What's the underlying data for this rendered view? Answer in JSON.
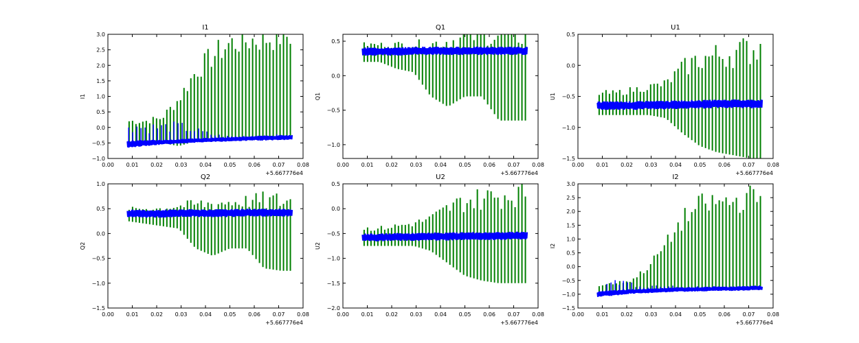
{
  "figure": {
    "colors": {
      "series_a": "#0000ff",
      "series_b": "#007f00",
      "axes": "#000000",
      "background": "#ffffff"
    }
  },
  "chart_data": [
    {
      "type": "line",
      "title": "I1",
      "ylabel": "I1",
      "xlabel": "",
      "x_offset_label": "+5.667776e4",
      "xlim": [
        0.0,
        0.08
      ],
      "ylim": [
        -1.0,
        3.0
      ],
      "xticks": [
        "0.00",
        "0.01",
        "0.02",
        "0.03",
        "0.04",
        "0.05",
        "0.06",
        "0.07",
        "0.08"
      ],
      "yticks": [
        "−1.0",
        "−0.5",
        "0.0",
        "0.5",
        "1.0",
        "1.5",
        "2.0",
        "2.5",
        "3.0"
      ],
      "x": [
        0.008,
        0.015,
        0.022,
        0.029,
        0.036,
        0.043,
        0.05,
        0.057,
        0.064,
        0.071,
        0.0755
      ],
      "series": [
        {
          "name": "blue",
          "color": "#0000ff",
          "center": [
            -0.55,
            -0.5,
            -0.48,
            -0.45,
            -0.42,
            -0.4,
            -0.38,
            -0.36,
            -0.34,
            -0.33,
            -0.32
          ],
          "spread": [
            0.12,
            0.1,
            0.08,
            0.07,
            0.07,
            0.07,
            0.07,
            0.07,
            0.08,
            0.08,
            0.08
          ],
          "spikes": [
            0.4,
            0.3,
            0.3,
            0.3,
            0.2,
            0.1,
            0.05,
            0.05,
            0.05,
            0.05,
            0.05
          ]
        },
        {
          "name": "green",
          "color": "#007f00",
          "low": [
            -0.6,
            -0.55,
            -0.5,
            -0.6,
            -0.45,
            -0.45,
            -0.4,
            -0.4,
            -0.35,
            -0.35,
            -0.3
          ],
          "high": [
            0.2,
            0.2,
            0.3,
            0.9,
            1.8,
            2.3,
            2.7,
            2.8,
            2.85,
            2.95,
            2.95
          ]
        }
      ]
    },
    {
      "type": "line",
      "title": "Q1",
      "ylabel": "Q1",
      "xlabel": "",
      "x_offset_label": "+5.667776e4",
      "xlim": [
        0.0,
        0.08
      ],
      "ylim": [
        -1.2,
        0.6
      ],
      "xticks": [
        "0.00",
        "0.01",
        "0.02",
        "0.03",
        "0.04",
        "0.05",
        "0.06",
        "0.07",
        "0.08"
      ],
      "yticks": [
        "−1.0",
        "−0.5",
        "0.0",
        "0.5"
      ],
      "yticks_values": [
        -1.0,
        -0.5,
        0.0,
        0.5
      ],
      "x": [
        0.008,
        0.015,
        0.022,
        0.029,
        0.036,
        0.043,
        0.05,
        0.057,
        0.064,
        0.071,
        0.0755
      ],
      "series": [
        {
          "name": "blue",
          "color": "#0000ff",
          "center": [
            0.35,
            0.35,
            0.35,
            0.36,
            0.36,
            0.36,
            0.36,
            0.36,
            0.36,
            0.36,
            0.36
          ],
          "spread": [
            0.06,
            0.06,
            0.06,
            0.06,
            0.06,
            0.06,
            0.06,
            0.06,
            0.06,
            0.06,
            0.06
          ],
          "spikes": [
            0.0,
            0.0,
            0.0,
            0.0,
            0.0,
            0.0,
            0.0,
            0.0,
            0.0,
            0.0,
            0.0
          ]
        },
        {
          "name": "green",
          "color": "#007f00",
          "low": [
            0.2,
            0.2,
            0.1,
            0.05,
            -0.3,
            -0.45,
            -0.3,
            -0.3,
            -0.65,
            -0.65,
            -0.65
          ],
          "high": [
            0.45,
            0.45,
            0.45,
            0.45,
            0.45,
            0.5,
            0.55,
            0.58,
            0.58,
            0.58,
            0.58
          ]
        }
      ]
    },
    {
      "type": "line",
      "title": "U1",
      "ylabel": "U1",
      "xlabel": "",
      "x_offset_label": "+5.667776e4",
      "xlim": [
        0.0,
        0.08
      ],
      "ylim": [
        -1.5,
        0.5
      ],
      "xticks": [
        "0.00",
        "0.01",
        "0.02",
        "0.03",
        "0.04",
        "0.05",
        "0.06",
        "0.07",
        "0.08"
      ],
      "yticks": [
        "−1.5",
        "−1.0",
        "−0.5",
        "0.0",
        "0.5"
      ],
      "yticks_values": [
        -1.5,
        -1.0,
        -0.5,
        0.0,
        0.5
      ],
      "x": [
        0.008,
        0.015,
        0.022,
        0.029,
        0.036,
        0.043,
        0.05,
        0.057,
        0.064,
        0.071,
        0.0755
      ],
      "series": [
        {
          "name": "blue",
          "color": "#0000ff",
          "center": [
            -0.65,
            -0.65,
            -0.65,
            -0.64,
            -0.64,
            -0.63,
            -0.63,
            -0.62,
            -0.62,
            -0.62,
            -0.62
          ],
          "spread": [
            0.07,
            0.07,
            0.07,
            0.07,
            0.07,
            0.07,
            0.07,
            0.07,
            0.07,
            0.07,
            0.07
          ],
          "spikes": [
            0.0,
            0.0,
            0.0,
            0.0,
            0.0,
            0.0,
            0.0,
            0.0,
            0.0,
            0.0,
            0.0
          ]
        },
        {
          "name": "green",
          "color": "#007f00",
          "low": [
            -0.8,
            -0.8,
            -0.8,
            -0.8,
            -0.85,
            -1.1,
            -1.3,
            -1.4,
            -1.45,
            -1.5,
            -1.5
          ],
          "high": [
            -0.45,
            -0.45,
            -0.4,
            -0.35,
            -0.3,
            -0.05,
            0.1,
            0.15,
            0.2,
            0.25,
            0.3
          ]
        }
      ]
    },
    {
      "type": "line",
      "title": "Q2",
      "ylabel": "Q2",
      "xlabel": "",
      "x_offset_label": "+5.667776e4",
      "xlim": [
        0.0,
        0.08
      ],
      "ylim": [
        -1.5,
        1.0
      ],
      "xticks": [
        "0.00",
        "0.01",
        "0.02",
        "0.03",
        "0.04",
        "0.05",
        "0.06",
        "0.07",
        "0.08"
      ],
      "yticks": [
        "−1.5",
        "−1.0",
        "−0.5",
        "0.0",
        "0.5",
        "1.0"
      ],
      "yticks_values": [
        -1.5,
        -1.0,
        -0.5,
        0.0,
        0.5,
        1.0
      ],
      "x": [
        0.008,
        0.015,
        0.022,
        0.029,
        0.036,
        0.043,
        0.05,
        0.057,
        0.064,
        0.071,
        0.0755
      ],
      "series": [
        {
          "name": "blue",
          "color": "#0000ff",
          "center": [
            0.4,
            0.4,
            0.4,
            0.41,
            0.41,
            0.41,
            0.41,
            0.42,
            0.42,
            0.42,
            0.42
          ],
          "spread": [
            0.08,
            0.08,
            0.08,
            0.08,
            0.08,
            0.08,
            0.08,
            0.08,
            0.08,
            0.08,
            0.08
          ],
          "spikes": [
            0.0,
            0.0,
            0.0,
            0.0,
            0.0,
            0.0,
            0.0,
            0.0,
            0.0,
            0.0,
            0.0
          ]
        },
        {
          "name": "green",
          "color": "#007f00",
          "low": [
            0.25,
            0.2,
            0.15,
            0.1,
            -0.3,
            -0.45,
            -0.3,
            -0.3,
            -0.7,
            -0.75,
            -0.75
          ],
          "high": [
            0.5,
            0.5,
            0.5,
            0.55,
            0.58,
            0.6,
            0.63,
            0.65,
            0.65,
            0.65,
            0.65
          ]
        }
      ]
    },
    {
      "type": "line",
      "title": "U2",
      "ylabel": "U2",
      "xlabel": "",
      "x_offset_label": "+5.667776e4",
      "xlim": [
        0.0,
        0.08
      ],
      "ylim": [
        -2.0,
        0.5
      ],
      "xticks": [
        "0.00",
        "0.01",
        "0.02",
        "0.03",
        "0.04",
        "0.05",
        "0.06",
        "0.07",
        "0.08"
      ],
      "yticks": [
        "−2.0",
        "−1.5",
        "−1.0",
        "−0.5",
        "0.0",
        "0.5"
      ],
      "yticks_values": [
        -2.0,
        -1.5,
        -1.0,
        -0.5,
        0.0,
        0.5
      ],
      "x": [
        0.008,
        0.015,
        0.022,
        0.029,
        0.036,
        0.043,
        0.05,
        0.057,
        0.064,
        0.071,
        0.0755
      ],
      "series": [
        {
          "name": "blue",
          "color": "#0000ff",
          "center": [
            -0.58,
            -0.58,
            -0.57,
            -0.57,
            -0.56,
            -0.56,
            -0.55,
            -0.55,
            -0.55,
            -0.54,
            -0.54
          ],
          "spread": [
            0.08,
            0.08,
            0.08,
            0.08,
            0.08,
            0.08,
            0.08,
            0.08,
            0.08,
            0.08,
            0.08
          ],
          "spikes": [
            0.0,
            0.0,
            0.0,
            0.0,
            0.0,
            0.0,
            0.0,
            0.0,
            0.0,
            0.0,
            0.0
          ]
        },
        {
          "name": "green",
          "color": "#007f00",
          "low": [
            -0.75,
            -0.75,
            -0.75,
            -0.75,
            -0.85,
            -1.1,
            -1.35,
            -1.45,
            -1.5,
            -1.5,
            -1.5
          ],
          "high": [
            -0.4,
            -0.4,
            -0.35,
            -0.3,
            -0.2,
            0.0,
            0.15,
            0.2,
            0.25,
            0.3,
            0.3
          ]
        }
      ]
    },
    {
      "type": "line",
      "title": "I2",
      "ylabel": "I2",
      "xlabel": "",
      "x_offset_label": "+5.667776e4",
      "xlim": [
        0.0,
        0.08
      ],
      "ylim": [
        -1.5,
        3.0
      ],
      "xticks": [
        "0.00",
        "0.01",
        "0.02",
        "0.03",
        "0.04",
        "0.05",
        "0.06",
        "0.07",
        "0.08"
      ],
      "yticks": [
        "−1.5",
        "−1.0",
        "−0.5",
        "0.0",
        "0.5",
        "1.0",
        "1.5",
        "2.0",
        "2.5",
        "3.0"
      ],
      "yticks_values": [
        -1.5,
        -1.0,
        -0.5,
        0.0,
        0.5,
        1.0,
        1.5,
        2.0,
        2.5,
        3.0
      ],
      "x": [
        0.008,
        0.015,
        0.022,
        0.029,
        0.036,
        0.043,
        0.05,
        0.057,
        0.064,
        0.071,
        0.0755
      ],
      "series": [
        {
          "name": "blue",
          "color": "#0000ff",
          "center": [
            -1.0,
            -0.95,
            -0.9,
            -0.88,
            -0.85,
            -0.83,
            -0.82,
            -0.8,
            -0.8,
            -0.78,
            -0.78
          ],
          "spread": [
            0.1,
            0.1,
            0.08,
            0.08,
            0.08,
            0.08,
            0.08,
            0.08,
            0.08,
            0.08,
            0.08
          ],
          "spikes": [
            0.0,
            0.3,
            0.15,
            0.1,
            0.1,
            0.05,
            0.05,
            0.05,
            0.05,
            0.05,
            0.05
          ]
        },
        {
          "name": "green",
          "color": "#007f00",
          "low": [
            -1.0,
            -0.95,
            -0.9,
            -0.9,
            -0.85,
            -0.85,
            -0.85,
            -0.8,
            -0.8,
            -0.8,
            -0.8
          ],
          "high": [
            -0.7,
            -0.6,
            -0.5,
            0.0,
            0.8,
            1.7,
            2.2,
            2.3,
            2.35,
            2.5,
            2.5
          ]
        }
      ]
    }
  ]
}
